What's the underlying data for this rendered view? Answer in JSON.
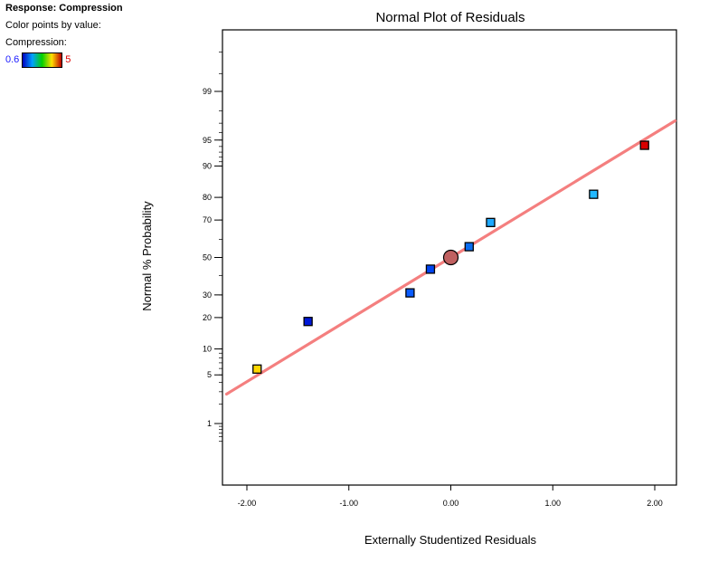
{
  "header": {
    "response_label": "Response: Compression",
    "color_by_label": "Color points by value:",
    "variable_label": "Compression:",
    "scale_min": "0.6",
    "scale_max": "5"
  },
  "chart_data": {
    "type": "scatter",
    "title": "Normal Plot of Residuals",
    "xlabel": "Externally Studentized Residuals",
    "ylabel": "Normal % Probability",
    "xlim": [
      -2.2,
      2.2
    ],
    "x_ticks": [
      "-2.00",
      "-1.00",
      "0.00",
      "1.00",
      "2.00"
    ],
    "x_tick_values": [
      -2,
      -1,
      0,
      1,
      2
    ],
    "y_scale": "normal-probability",
    "y_ticks": [
      "1",
      "5",
      "10",
      "20",
      "30",
      "50",
      "70",
      "80",
      "90",
      "95",
      "99"
    ],
    "y_tick_values": [
      1,
      5,
      10,
      20,
      30,
      50,
      70,
      80,
      90,
      95,
      99
    ],
    "reference_line": {
      "color": "#f47f7f"
    },
    "points": [
      {
        "x": -1.9,
        "y": 5.9,
        "color": "#ffd700"
      },
      {
        "x": -1.4,
        "y": 18.5,
        "color": "#0018d8"
      },
      {
        "x": -0.4,
        "y": 31.0,
        "color": "#0a5cff"
      },
      {
        "x": -0.2,
        "y": 43.5,
        "color": "#0044f0"
      },
      {
        "x": 0.0,
        "y": 50.0,
        "color": "#c06060",
        "center": true
      },
      {
        "x": 0.18,
        "y": 56.0,
        "color": "#0a6cf0"
      },
      {
        "x": 0.39,
        "y": 68.8,
        "color": "#1ea8ff"
      },
      {
        "x": 1.4,
        "y": 81.2,
        "color": "#22b8ff"
      },
      {
        "x": 1.9,
        "y": 94.2,
        "color": "#d80000"
      }
    ]
  }
}
